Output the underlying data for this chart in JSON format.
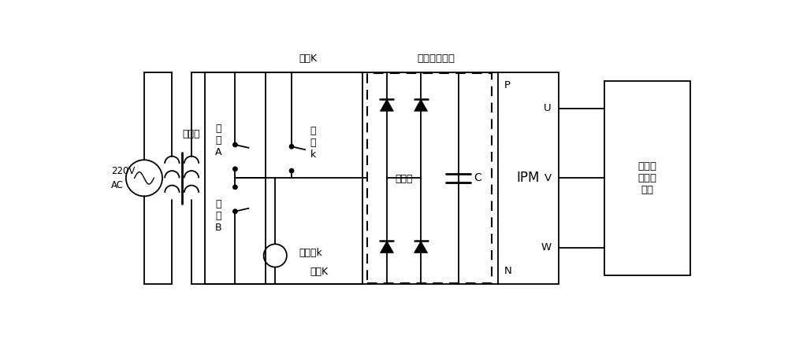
{
  "bg_color": "#ffffff",
  "line_color": "#000000",
  "labels": {
    "220V_AC": "220V\nAC",
    "transformer": "变压器",
    "switch_A": "开\n关\nA",
    "switch_B": "开\n关\nB",
    "contact_k_top": "触\n点\nk",
    "contact_K_top": "触点K",
    "contact_K_bot": "触点K",
    "relay_k": "继电器k",
    "rectifier_filter": "整流滤波电路",
    "rectifier_bridge": "整流桥",
    "capacitor": "C",
    "IPM": "IPM",
    "P": "P",
    "N": "N",
    "U": "U",
    "V": "V",
    "W": "W",
    "motor": "永磁直\n线同步\n电机"
  }
}
